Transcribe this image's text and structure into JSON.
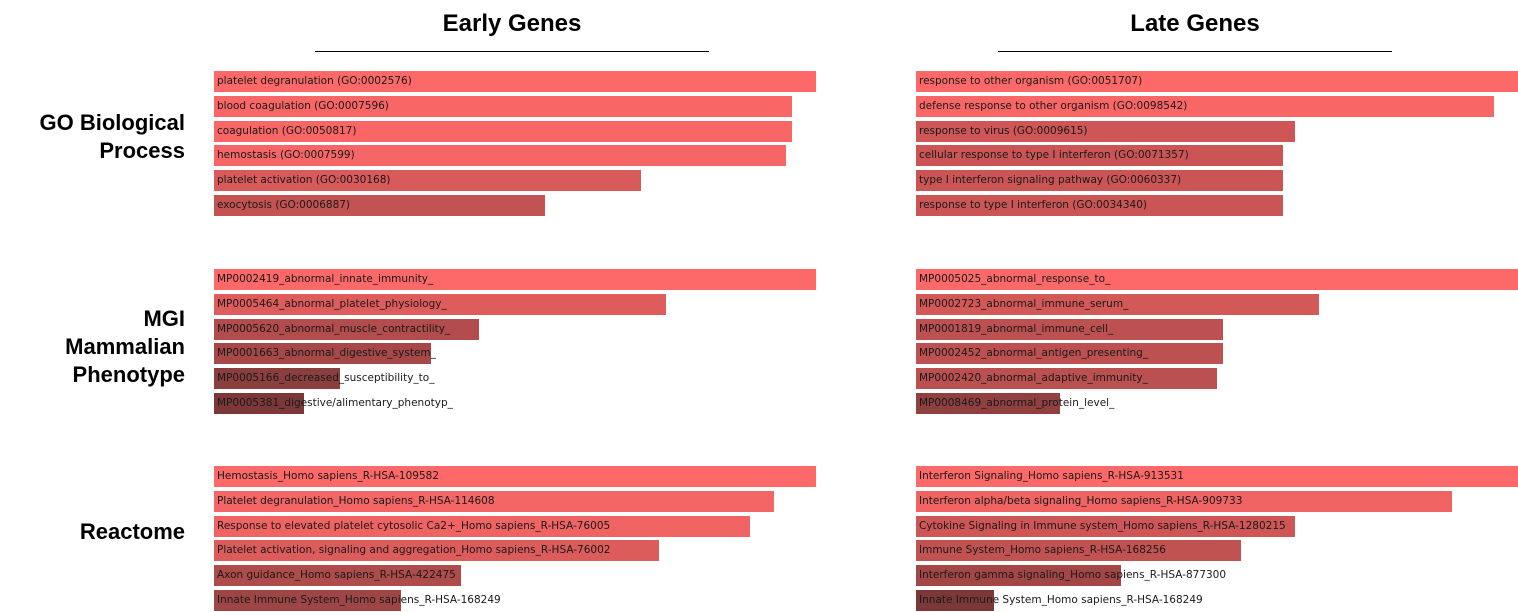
{
  "columns": [
    "Early Genes",
    "Late Genes"
  ],
  "rows": [
    {
      "lines": [
        "GO Biological",
        "Process"
      ]
    },
    {
      "lines": [
        "MGI",
        "Mammalian",
        "Phenotype"
      ]
    },
    {
      "lines": [
        "Reactome"
      ]
    }
  ],
  "colors": {
    "high": "#fd6868",
    "low": "#7c3838"
  },
  "chart_data": [
    {
      "type": "bar",
      "column": "Early Genes",
      "row": "GO Biological Process",
      "categories": [
        "platelet degranulation (GO:0002576)",
        "blood coagulation (GO:0007596)",
        "coagulation (GO:0050817)",
        "hemostasis (GO:0007599)",
        "platelet activation (GO:0030168)",
        "exocytosis (GO:0006887)"
      ],
      "values": [
        1.0,
        0.96,
        0.96,
        0.95,
        0.71,
        0.55
      ]
    },
    {
      "type": "bar",
      "column": "Late Genes",
      "row": "GO Biological Process",
      "categories": [
        "response to other organism (GO:0051707)",
        "defense response to other organism (GO:0098542)",
        "response to virus (GO:0009615)",
        "cellular response to type I interferon (GO:0071357)",
        "type I interferon signaling pathway (GO:0060337)",
        "response to type I interferon (GO:0034340)"
      ],
      "values": [
        1.0,
        0.96,
        0.63,
        0.61,
        0.61,
        0.61
      ]
    },
    {
      "type": "bar",
      "column": "Early Genes",
      "row": "MGI Mammalian Phenotype",
      "categories": [
        "MP0002419_abnormal_innate_immunity_",
        "MP0005464_abnormal_platelet_physiology_",
        "MP0005620_abnormal_muscle_contractility_",
        "MP0001663_abnormal_digestive_system_",
        "MP0005166_decreased_susceptibility_to_",
        "MP0005381_digestive/alimentary_phenotyp_"
      ],
      "values": [
        1.0,
        0.75,
        0.44,
        0.36,
        0.21,
        0.15
      ]
    },
    {
      "type": "bar",
      "column": "Late Genes",
      "row": "MGI Mammalian Phenotype",
      "categories": [
        "MP0005025_abnormal_response_to_",
        "MP0002723_abnormal_immune_serum_",
        "MP0001819_abnormal_immune_cell_",
        "MP0002452_abnormal_antigen_presenting_",
        "MP0002420_abnormal_adaptive_immunity_",
        "MP0008469_abnormal_protein_level_"
      ],
      "values": [
        1.0,
        0.67,
        0.51,
        0.51,
        0.5,
        0.24
      ]
    },
    {
      "type": "bar",
      "column": "Early Genes",
      "row": "Reactome",
      "categories": [
        "Hemostasis_Homo sapiens_R-HSA-109582",
        "Platelet degranulation_Homo sapiens_R-HSA-114608",
        "Response to elevated platelet cytosolic Ca2+_Homo sapiens_R-HSA-76005",
        "Platelet activation, signaling and aggregation_Homo sapiens_R-HSA-76002",
        "Axon guidance_Homo sapiens_R-HSA-422475",
        "Innate Immune System_Homo sapiens_R-HSA-168249"
      ],
      "values": [
        1.0,
        0.93,
        0.89,
        0.74,
        0.41,
        0.31
      ]
    },
    {
      "type": "bar",
      "column": "Late Genes",
      "row": "Reactome",
      "categories": [
        "Interferon Signaling_Homo sapiens_R-HSA-913531",
        "Interferon alpha/beta signaling_Homo sapiens_R-HSA-909733",
        "Cytokine Signaling in Immune system_Homo sapiens_R-HSA-1280215",
        "Immune System_Homo sapiens_R-HSA-168256",
        "Interferon gamma signaling_Homo sapiens_R-HSA-877300",
        "Innate Immune System_Homo sapiens_R-HSA-168249"
      ],
      "values": [
        1.0,
        0.89,
        0.63,
        0.54,
        0.34,
        0.13
      ]
    }
  ]
}
